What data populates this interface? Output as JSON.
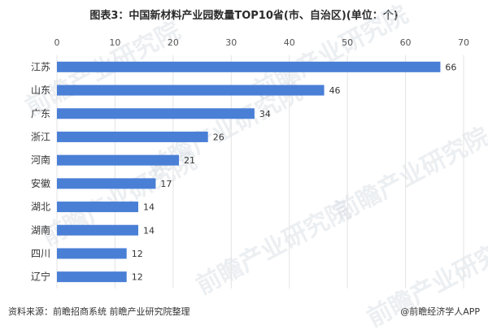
{
  "title": "图表3：中国新材料产业园数量TOP10省(市、自治区)(单位：个)",
  "footer": {
    "source": "资料来源：前瞻招商系统 前瞻产业研究院整理",
    "brand": "@前瞻经济学人APP"
  },
  "watermark": "前瞻产业研究院",
  "colors": {
    "bar": "#4a7fd6",
    "grid": "#e3e3e3"
  },
  "chart_data": {
    "type": "bar",
    "orientation": "horizontal",
    "title": "图表3：中国新材料产业园数量TOP10省(市、自治区)(单位：个)",
    "xlabel": "",
    "ylabel": "",
    "xlim": [
      0,
      70
    ],
    "ticks": [
      0,
      10,
      20,
      30,
      40,
      50,
      60,
      70
    ],
    "axis_position": "top",
    "grid": true,
    "categories": [
      "江苏",
      "山东",
      "广东",
      "浙江",
      "河南",
      "安徽",
      "湖北",
      "湖南",
      "四川",
      "辽宁"
    ],
    "values": [
      66,
      46,
      34,
      26,
      21,
      17,
      14,
      14,
      12,
      12
    ]
  }
}
